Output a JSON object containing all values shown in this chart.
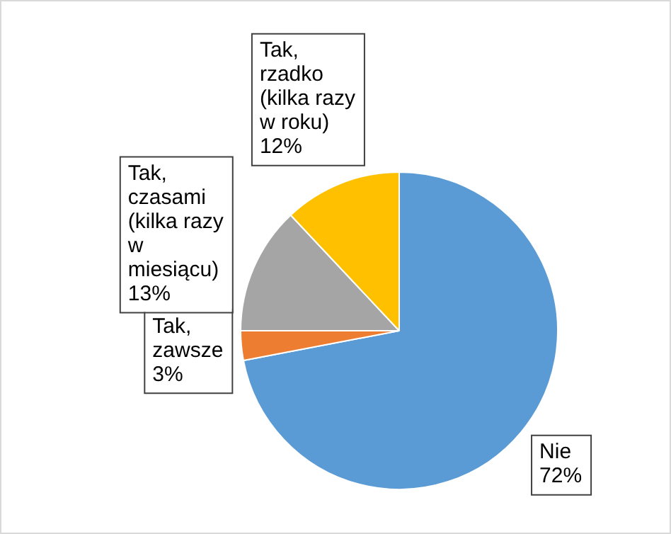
{
  "chart_data": {
    "type": "pie",
    "categories": [
      "Nie",
      "Tak, zawsze",
      "Tak, czasami (kilka razy w miesiącu)",
      "Tak, rzadko (kilka razy w roku)"
    ],
    "values": [
      72,
      3,
      13,
      12
    ],
    "colors": [
      "#5b9bd5",
      "#ed7d31",
      "#a5a5a5",
      "#ffc000"
    ],
    "value_labels": [
      "72%",
      "3%",
      "13%",
      "12%"
    ],
    "legend": false
  }
}
